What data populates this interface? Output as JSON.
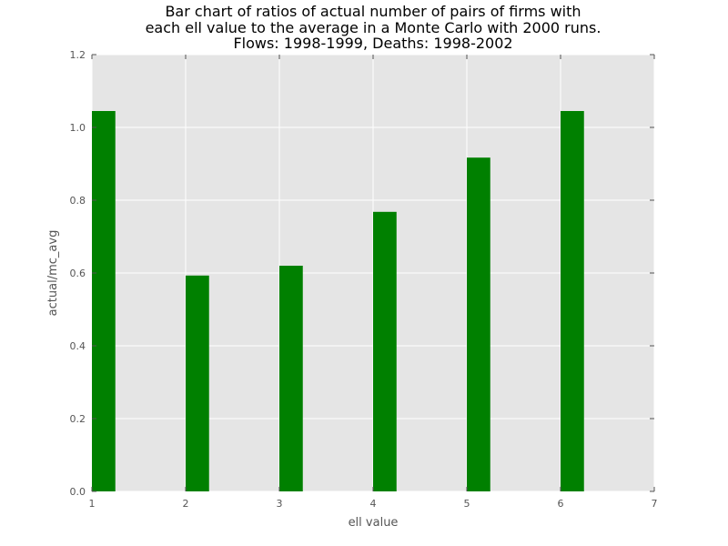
{
  "chart_data": {
    "type": "bar",
    "title_lines": [
      "Bar chart of ratios of actual number of pairs of firms with",
      "each ell value to the average in a Monte Carlo with 2000 runs.",
      "Flows: 1998-1999,  Deaths: 1998-2002"
    ],
    "xlabel": "ell value",
    "ylabel": "actual/mc_avg",
    "x": [
      1,
      2,
      3,
      4,
      5,
      6
    ],
    "values": [
      1.045,
      0.593,
      0.62,
      0.768,
      0.917,
      1.045
    ],
    "bar_width": 0.25,
    "xlim": [
      1,
      7
    ],
    "ylim": [
      0,
      1.2
    ],
    "xticks": [
      1,
      2,
      3,
      4,
      5,
      6,
      7
    ],
    "xtick_labels": [
      "1",
      "2",
      "3",
      "4",
      "5",
      "6",
      "7"
    ],
    "yticks": [
      0,
      0.2,
      0.4,
      0.6,
      0.8,
      1.0,
      1.2
    ],
    "ytick_labels": [
      "0.0",
      "0.2",
      "0.4",
      "0.6",
      "0.8",
      "1.0",
      "1.2"
    ],
    "grid": true,
    "colors": {
      "bar": "#008000",
      "plot_background": "#e5e5e5",
      "grid": "#ffffff",
      "text": "#555555"
    }
  }
}
